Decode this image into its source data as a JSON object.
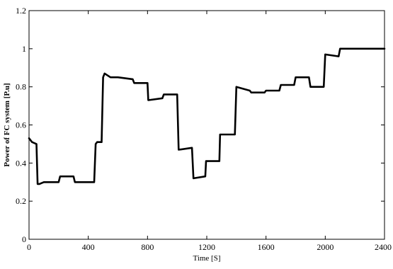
{
  "chart_data": {
    "type": "line",
    "title": "",
    "xlabel": "Time [S]",
    "ylabel": "Power of FC system [P.u]",
    "xlim": [
      0,
      2400
    ],
    "ylim": [
      0,
      1.2
    ],
    "xticks": [
      "0",
      "400",
      "800",
      "1200",
      "1600",
      "2000",
      "2400"
    ],
    "yticks": [
      "0",
      "0.2",
      "0.4",
      "0.6",
      "0.8",
      "1",
      "1.2"
    ],
    "xtick_values": [
      0,
      400,
      800,
      1200,
      1600,
      2000,
      2400
    ],
    "ytick_values": [
      0,
      0.2,
      0.4,
      0.6,
      0.8,
      1.0,
      1.2
    ],
    "grid": false,
    "line_color": "#000000",
    "series": [
      {
        "name": "",
        "x": [
          0,
          20,
          50,
          58,
          70,
          100,
          200,
          210,
          300,
          310,
          440,
          450,
          460,
          490,
          500,
          510,
          550,
          600,
          700,
          710,
          800,
          805,
          900,
          910,
          1000,
          1010,
          1100,
          1110,
          1190,
          1195,
          1285,
          1290,
          1390,
          1400,
          1490,
          1500,
          1590,
          1600,
          1690,
          1700,
          1790,
          1800,
          1890,
          1900,
          1990,
          2000,
          2090,
          2100,
          2400
        ],
        "y": [
          0.53,
          0.51,
          0.5,
          0.29,
          0.29,
          0.3,
          0.3,
          0.33,
          0.33,
          0.3,
          0.3,
          0.5,
          0.51,
          0.51,
          0.85,
          0.87,
          0.85,
          0.85,
          0.84,
          0.82,
          0.82,
          0.73,
          0.74,
          0.76,
          0.76,
          0.47,
          0.48,
          0.32,
          0.33,
          0.41,
          0.41,
          0.55,
          0.55,
          0.8,
          0.78,
          0.77,
          0.77,
          0.78,
          0.78,
          0.81,
          0.81,
          0.85,
          0.85,
          0.8,
          0.8,
          0.97,
          0.96,
          1.0,
          1.0
        ]
      }
    ]
  }
}
